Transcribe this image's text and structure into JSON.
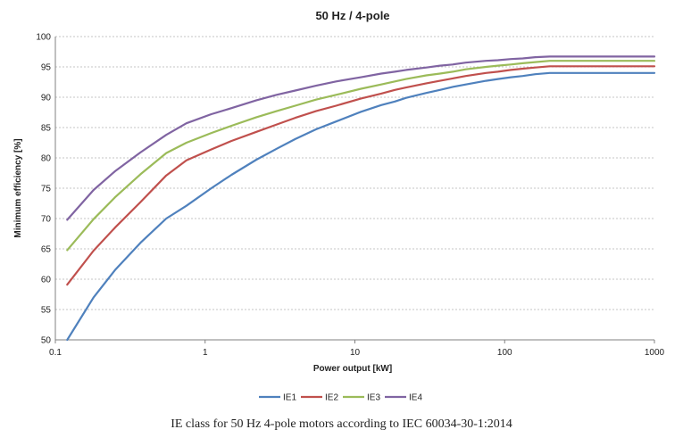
{
  "caption": "IE class for 50 Hz 4-pole motors according to IEC 60034-30-1:2014",
  "chart_data": {
    "type": "line",
    "title": "50 Hz / 4-pole",
    "xlabel": "Power output [kW]",
    "ylabel": "Minimum efficiency [%]",
    "xscale": "log",
    "xlim": [
      0.1,
      1000
    ],
    "ylim": [
      50,
      100
    ],
    "xticks": [
      "0.1",
      "1",
      "10",
      "100",
      "1000"
    ],
    "yticks": [
      "50",
      "55",
      "60",
      "65",
      "70",
      "75",
      "80",
      "85",
      "90",
      "95",
      "100"
    ],
    "grid": "horizontal dashed",
    "legend_position": "bottom",
    "x": [
      0.12,
      0.18,
      0.25,
      0.37,
      0.55,
      0.75,
      1.1,
      1.5,
      2.2,
      3,
      4,
      5.5,
      7.5,
      11,
      15,
      18.5,
      22,
      30,
      37,
      45,
      55,
      75,
      90,
      110,
      132,
      160,
      200,
      250,
      315,
      355,
      1000
    ],
    "series": [
      {
        "name": "IE1",
        "color": "#4f81bd",
        "values": [
          50.0,
          57.0,
          61.5,
          66.0,
          70.0,
          72.1,
          75.0,
          77.2,
          79.7,
          81.5,
          83.1,
          84.7,
          86.0,
          87.6,
          88.7,
          89.3,
          89.9,
          90.7,
          91.2,
          91.7,
          92.1,
          92.7,
          93.0,
          93.3,
          93.5,
          93.8,
          94.0,
          94.0,
          94.0,
          94.0,
          94.0
        ]
      },
      {
        "name": "IE2",
        "color": "#c0504d",
        "values": [
          59.1,
          64.7,
          68.5,
          72.7,
          77.1,
          79.6,
          81.4,
          82.8,
          84.3,
          85.5,
          86.6,
          87.7,
          88.6,
          89.8,
          90.6,
          91.2,
          91.6,
          92.3,
          92.7,
          93.1,
          93.5,
          94.0,
          94.2,
          94.5,
          94.7,
          94.9,
          95.1,
          95.1,
          95.1,
          95.1,
          95.1
        ]
      },
      {
        "name": "IE3",
        "color": "#9bbb59",
        "values": [
          64.8,
          69.9,
          73.5,
          77.3,
          80.8,
          82.5,
          84.1,
          85.3,
          86.7,
          87.7,
          88.6,
          89.6,
          90.4,
          91.4,
          92.1,
          92.6,
          93.0,
          93.6,
          93.9,
          94.2,
          94.6,
          95.0,
          95.2,
          95.4,
          95.6,
          95.8,
          96.0,
          96.0,
          96.0,
          96.0,
          96.0
        ]
      },
      {
        "name": "IE4",
        "color": "#8064a2",
        "values": [
          69.8,
          74.7,
          77.8,
          80.9,
          83.8,
          85.7,
          87.2,
          88.2,
          89.5,
          90.4,
          91.1,
          91.9,
          92.6,
          93.3,
          93.9,
          94.2,
          94.5,
          94.9,
          95.2,
          95.4,
          95.7,
          96.0,
          96.1,
          96.3,
          96.4,
          96.6,
          96.7,
          96.7,
          96.7,
          96.7,
          96.7
        ]
      }
    ]
  }
}
